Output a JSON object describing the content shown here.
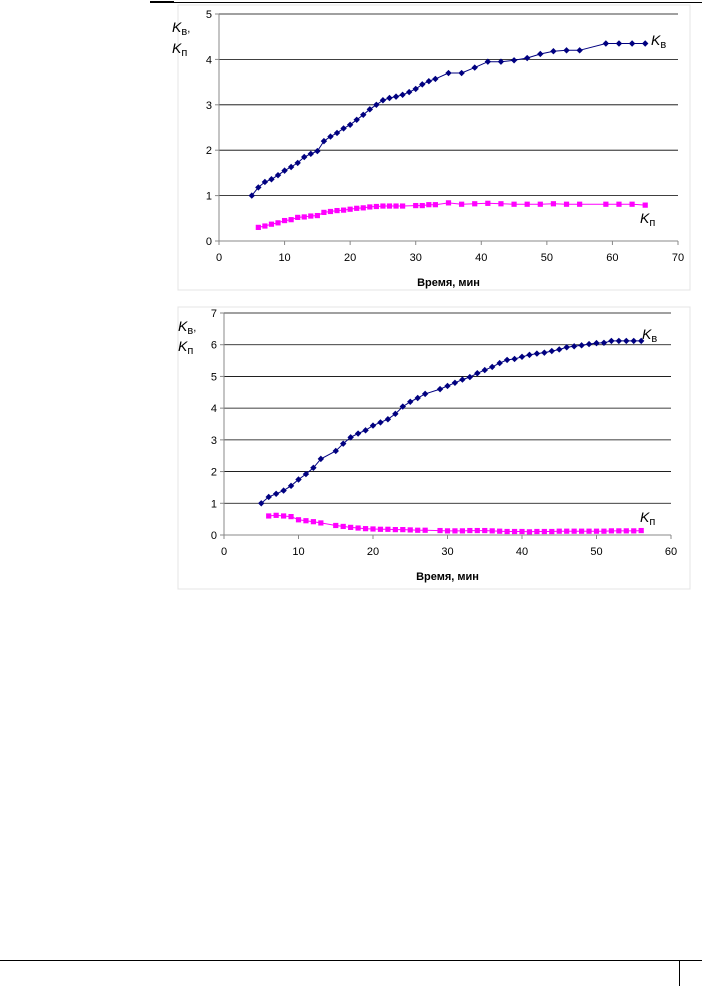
{
  "chart_data": [
    {
      "type": "line",
      "xlabel": "Время, мин",
      "ylabel": {
        "lines": [
          {
            "main": "K",
            "sub": "в",
            "suffix": ","
          },
          {
            "main": "K",
            "sub": "п",
            "suffix": ""
          }
        ]
      },
      "xlim": [
        0,
        70
      ],
      "ylim": [
        0,
        5
      ],
      "xticks": [
        0,
        10,
        20,
        30,
        40,
        50,
        60,
        70
      ],
      "yticks": [
        0,
        1,
        2,
        3,
        4,
        5
      ],
      "grid": "horizontal",
      "series": [
        {
          "name": "Kв",
          "label_main": "K",
          "label_sub": "в",
          "color": "#000080",
          "marker": "diamond",
          "points": [
            [
              5,
              1.0
            ],
            [
              6,
              1.18
            ],
            [
              7,
              1.3
            ],
            [
              8,
              1.36
            ],
            [
              9,
              1.45
            ],
            [
              10,
              1.55
            ],
            [
              11,
              1.63
            ],
            [
              12,
              1.72
            ],
            [
              13,
              1.85
            ],
            [
              14,
              1.92
            ],
            [
              15,
              1.98
            ],
            [
              16,
              2.2
            ],
            [
              17,
              2.3
            ],
            [
              18,
              2.38
            ],
            [
              19,
              2.48
            ],
            [
              20,
              2.56
            ],
            [
              21,
              2.67
            ],
            [
              22,
              2.78
            ],
            [
              23,
              2.9
            ],
            [
              24,
              3.0
            ],
            [
              25,
              3.1
            ],
            [
              26,
              3.15
            ],
            [
              27,
              3.18
            ],
            [
              28,
              3.22
            ],
            [
              29,
              3.28
            ],
            [
              30,
              3.35
            ],
            [
              31,
              3.45
            ],
            [
              32,
              3.52
            ],
            [
              33,
              3.57
            ],
            [
              35,
              3.7
            ],
            [
              37,
              3.7
            ],
            [
              39,
              3.82
            ],
            [
              41,
              3.95
            ],
            [
              43,
              3.95
            ],
            [
              45,
              3.98
            ],
            [
              47,
              4.03
            ],
            [
              49,
              4.12
            ],
            [
              51,
              4.18
            ],
            [
              53,
              4.2
            ],
            [
              55,
              4.2
            ],
            [
              59,
              4.35
            ],
            [
              61,
              4.35
            ],
            [
              63,
              4.35
            ],
            [
              65,
              4.35
            ]
          ]
        },
        {
          "name": "Kп",
          "label_main": "K",
          "label_sub": "п",
          "color": "#ff00ff",
          "marker": "square",
          "points": [
            [
              6,
              0.3
            ],
            [
              7,
              0.33
            ],
            [
              8,
              0.37
            ],
            [
              9,
              0.4
            ],
            [
              10,
              0.45
            ],
            [
              11,
              0.47
            ],
            [
              12,
              0.52
            ],
            [
              13,
              0.53
            ],
            [
              14,
              0.55
            ],
            [
              15,
              0.56
            ],
            [
              16,
              0.63
            ],
            [
              17,
              0.65
            ],
            [
              18,
              0.67
            ],
            [
              19,
              0.68
            ],
            [
              20,
              0.7
            ],
            [
              21,
              0.72
            ],
            [
              22,
              0.73
            ],
            [
              23,
              0.75
            ],
            [
              24,
              0.76
            ],
            [
              25,
              0.77
            ],
            [
              26,
              0.77
            ],
            [
              27,
              0.77
            ],
            [
              28,
              0.77
            ],
            [
              30,
              0.78
            ],
            [
              31,
              0.78
            ],
            [
              32,
              0.8
            ],
            [
              33,
              0.8
            ],
            [
              35,
              0.84
            ],
            [
              37,
              0.81
            ],
            [
              39,
              0.82
            ],
            [
              41,
              0.83
            ],
            [
              43,
              0.82
            ],
            [
              45,
              0.81
            ],
            [
              47,
              0.81
            ],
            [
              49,
              0.81
            ],
            [
              51,
              0.82
            ],
            [
              53,
              0.81
            ],
            [
              55,
              0.81
            ],
            [
              59,
              0.81
            ],
            [
              61,
              0.81
            ],
            [
              63,
              0.81
            ],
            [
              65,
              0.79
            ]
          ]
        }
      ]
    },
    {
      "type": "line",
      "xlabel": "Время, мин",
      "ylabel": {
        "lines": [
          {
            "main": "K",
            "sub": "в",
            "suffix": ","
          },
          {
            "main": "K",
            "sub": "п",
            "suffix": ""
          }
        ]
      },
      "xlim": [
        0,
        60
      ],
      "ylim": [
        0,
        7
      ],
      "xticks": [
        0,
        10,
        20,
        30,
        40,
        50,
        60
      ],
      "yticks": [
        0,
        1,
        2,
        3,
        4,
        5,
        6,
        7
      ],
      "grid": "horizontal",
      "series": [
        {
          "name": "Kв",
          "label_main": "K",
          "label_sub": "в",
          "color": "#000080",
          "marker": "diamond",
          "points": [
            [
              5,
              1.0
            ],
            [
              6,
              1.2
            ],
            [
              7,
              1.3
            ],
            [
              8,
              1.4
            ],
            [
              9,
              1.55
            ],
            [
              10,
              1.75
            ],
            [
              11,
              1.92
            ],
            [
              12,
              2.12
            ],
            [
              13,
              2.4
            ],
            [
              15,
              2.65
            ],
            [
              16,
              2.88
            ],
            [
              17,
              3.08
            ],
            [
              18,
              3.2
            ],
            [
              19,
              3.3
            ],
            [
              20,
              3.45
            ],
            [
              21,
              3.55
            ],
            [
              22,
              3.65
            ],
            [
              23,
              3.82
            ],
            [
              24,
              4.05
            ],
            [
              25,
              4.2
            ],
            [
              26,
              4.32
            ],
            [
              27,
              4.45
            ],
            [
              29,
              4.6
            ],
            [
              30,
              4.7
            ],
            [
              31,
              4.8
            ],
            [
              32,
              4.9
            ],
            [
              33,
              4.98
            ],
            [
              34,
              5.1
            ],
            [
              35,
              5.2
            ],
            [
              36,
              5.3
            ],
            [
              37,
              5.42
            ],
            [
              38,
              5.52
            ],
            [
              39,
              5.55
            ],
            [
              40,
              5.62
            ],
            [
              41,
              5.68
            ],
            [
              42,
              5.72
            ],
            [
              43,
              5.75
            ],
            [
              44,
              5.8
            ],
            [
              45,
              5.85
            ],
            [
              46,
              5.92
            ],
            [
              47,
              5.95
            ],
            [
              48,
              5.98
            ],
            [
              49,
              6.02
            ],
            [
              50,
              6.05
            ],
            [
              51,
              6.06
            ],
            [
              52,
              6.12
            ],
            [
              53,
              6.12
            ],
            [
              54,
              6.12
            ],
            [
              55,
              6.12
            ],
            [
              56,
              6.12
            ]
          ]
        },
        {
          "name": "Kп",
          "label_main": "K",
          "label_sub": "п",
          "color": "#ff00ff",
          "marker": "square",
          "points": [
            [
              6,
              0.6
            ],
            [
              7,
              0.62
            ],
            [
              8,
              0.6
            ],
            [
              9,
              0.58
            ],
            [
              10,
              0.48
            ],
            [
              11,
              0.45
            ],
            [
              12,
              0.42
            ],
            [
              13,
              0.38
            ],
            [
              15,
              0.3
            ],
            [
              16,
              0.27
            ],
            [
              17,
              0.24
            ],
            [
              18,
              0.22
            ],
            [
              19,
              0.2
            ],
            [
              20,
              0.19
            ],
            [
              21,
              0.18
            ],
            [
              22,
              0.18
            ],
            [
              23,
              0.17
            ],
            [
              24,
              0.17
            ],
            [
              25,
              0.16
            ],
            [
              26,
              0.15
            ],
            [
              27,
              0.15
            ],
            [
              29,
              0.14
            ],
            [
              30,
              0.13
            ],
            [
              31,
              0.13
            ],
            [
              32,
              0.13
            ],
            [
              33,
              0.14
            ],
            [
              34,
              0.14
            ],
            [
              35,
              0.14
            ],
            [
              36,
              0.13
            ],
            [
              37,
              0.12
            ],
            [
              38,
              0.11
            ],
            [
              39,
              0.11
            ],
            [
              40,
              0.11
            ],
            [
              41,
              0.1
            ],
            [
              42,
              0.11
            ],
            [
              43,
              0.11
            ],
            [
              44,
              0.11
            ],
            [
              45,
              0.12
            ],
            [
              46,
              0.12
            ],
            [
              47,
              0.12
            ],
            [
              48,
              0.12
            ],
            [
              49,
              0.12
            ],
            [
              50,
              0.12
            ],
            [
              51,
              0.12
            ],
            [
              52,
              0.13
            ],
            [
              53,
              0.13
            ],
            [
              54,
              0.13
            ],
            [
              55,
              0.13
            ],
            [
              56,
              0.14
            ]
          ]
        }
      ]
    }
  ]
}
